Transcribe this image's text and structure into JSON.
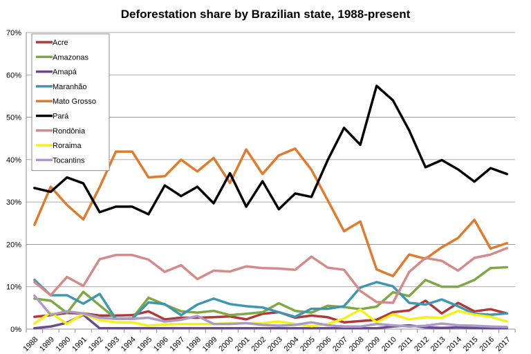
{
  "chart_data": {
    "type": "line",
    "title": "Deforestation share by Brazilian state, 1988-present",
    "xlabel": "",
    "ylabel": "",
    "ylim": [
      0,
      70
    ],
    "yticks": [
      "0%",
      "10%",
      "20%",
      "30%",
      "40%",
      "50%",
      "60%",
      "70%"
    ],
    "grid": true,
    "legend_position": "top-left",
    "x": [
      "1988",
      "1989",
      "1990",
      "1991",
      "1992",
      "1993",
      "1994",
      "1995",
      "1996",
      "1997",
      "1998",
      "1999",
      "2000",
      "2001",
      "2002",
      "2003",
      "2004",
      "2005",
      "2006",
      "2007",
      "2008",
      "2009",
      "2010",
      "2011",
      "2012",
      "2013",
      "2014",
      "2015",
      "2016",
      "2017"
    ],
    "series": [
      {
        "name": "Acre",
        "color": "#b03a3a",
        "values": [
          2.9,
          3.3,
          3.8,
          3.7,
          3.2,
          3.2,
          3.3,
          4.2,
          2.3,
          2.7,
          2.7,
          2.8,
          3.0,
          2.3,
          3.6,
          4.0,
          2.7,
          3.2,
          2.8,
          1.6,
          1.9,
          2.2,
          4.0,
          4.4,
          6.7,
          3.7,
          6.2,
          4.2,
          4.7,
          3.7
        ]
      },
      {
        "name": "Amazonas",
        "color": "#7ea843",
        "values": [
          7.2,
          6.7,
          3.8,
          8.8,
          5.6,
          2.5,
          2.5,
          7.4,
          5.8,
          4.2,
          3.9,
          4.3,
          3.3,
          3.6,
          4.0,
          6.1,
          4.3,
          3.9,
          5.5,
          5.2,
          4.7,
          5.3,
          8.7,
          7.8,
          11.6,
          10.0,
          10.0,
          11.6,
          14.4,
          14.6
        ]
      },
      {
        "name": "Amapá",
        "color": "#6a4a8e",
        "values": [
          0.2,
          0.6,
          1.5,
          3.4,
          0.2,
          0.2,
          0.2,
          0.2,
          0.2,
          0.2,
          0.2,
          0.2,
          0.2,
          0.2,
          0.2,
          0.2,
          0.2,
          0.2,
          0.2,
          0.2,
          0.2,
          0.2,
          0.6,
          0.9,
          0.4,
          0.3,
          0.4,
          0.3,
          0.2,
          0.2
        ]
      },
      {
        "name": "Maranhão",
        "color": "#3d97b0",
        "values": [
          11.6,
          8.0,
          8.0,
          6.0,
          8.3,
          2.4,
          2.4,
          6.3,
          5.9,
          3.3,
          5.8,
          7.2,
          5.9,
          5.4,
          5.1,
          4.0,
          2.9,
          4.8,
          4.8,
          5.4,
          9.8,
          11.1,
          10.1,
          6.2,
          5.8,
          7.0,
          5.4,
          3.6,
          3.4,
          3.7
        ]
      },
      {
        "name": "Mato Grosso",
        "color": "#e07b2e",
        "values": [
          24.6,
          33.6,
          29.3,
          25.9,
          33.5,
          41.9,
          41.9,
          35.8,
          36.1,
          40.0,
          37.2,
          40.4,
          34.5,
          42.4,
          36.6,
          41.0,
          42.6,
          37.6,
          30.4,
          23.1,
          25.4,
          14.1,
          12.5,
          17.6,
          16.6,
          19.3,
          21.5,
          25.8,
          19.0,
          20.3
        ]
      },
      {
        "name": "Pará",
        "color": "#000000",
        "values": [
          33.3,
          32.4,
          35.8,
          34.4,
          27.6,
          28.9,
          28.9,
          27.1,
          33.9,
          31.4,
          33.6,
          29.7,
          36.8,
          28.9,
          34.9,
          28.3,
          32.0,
          31.2,
          39.9,
          47.5,
          43.5,
          57.4,
          54.0,
          46.9,
          38.2,
          39.9,
          37.7,
          34.8,
          38.0,
          36.6
        ]
      },
      {
        "name": "Rondônia",
        "color": "#d58a8a",
        "values": [
          11.1,
          8.0,
          12.3,
          10.2,
          16.5,
          17.5,
          17.5,
          16.4,
          13.5,
          15.1,
          11.8,
          13.8,
          13.6,
          14.8,
          14.4,
          14.3,
          14.0,
          17.1,
          14.5,
          14.0,
          9.0,
          6.4,
          6.2,
          13.5,
          16.8,
          16.1,
          13.8,
          16.8,
          17.6,
          19.1
        ]
      },
      {
        "name": "Roraima",
        "color": "#f2f21a",
        "values": [
          1.3,
          3.9,
          1.2,
          3.6,
          2.1,
          1.6,
          1.6,
          0.8,
          1.1,
          1.2,
          1.2,
          1.2,
          1.4,
          1.4,
          1.4,
          1.8,
          1.2,
          0.7,
          1.2,
          2.5,
          4.6,
          1.6,
          3.5,
          2.3,
          2.8,
          2.7,
          4.3,
          3.4,
          2.9,
          1.8
        ]
      },
      {
        "name": "Tocantins",
        "color": "#a99ac9",
        "values": [
          7.9,
          3.4,
          4.2,
          3.7,
          2.7,
          2.4,
          2.4,
          2.7,
          1.8,
          2.2,
          3.1,
          1.2,
          1.2,
          1.4,
          1.0,
          0.8,
          1.0,
          1.6,
          0.9,
          0.6,
          0.6,
          1.2,
          0.9,
          0.6,
          0.8,
          1.3,
          0.9,
          0.8,
          0.6,
          0.5
        ]
      }
    ]
  }
}
